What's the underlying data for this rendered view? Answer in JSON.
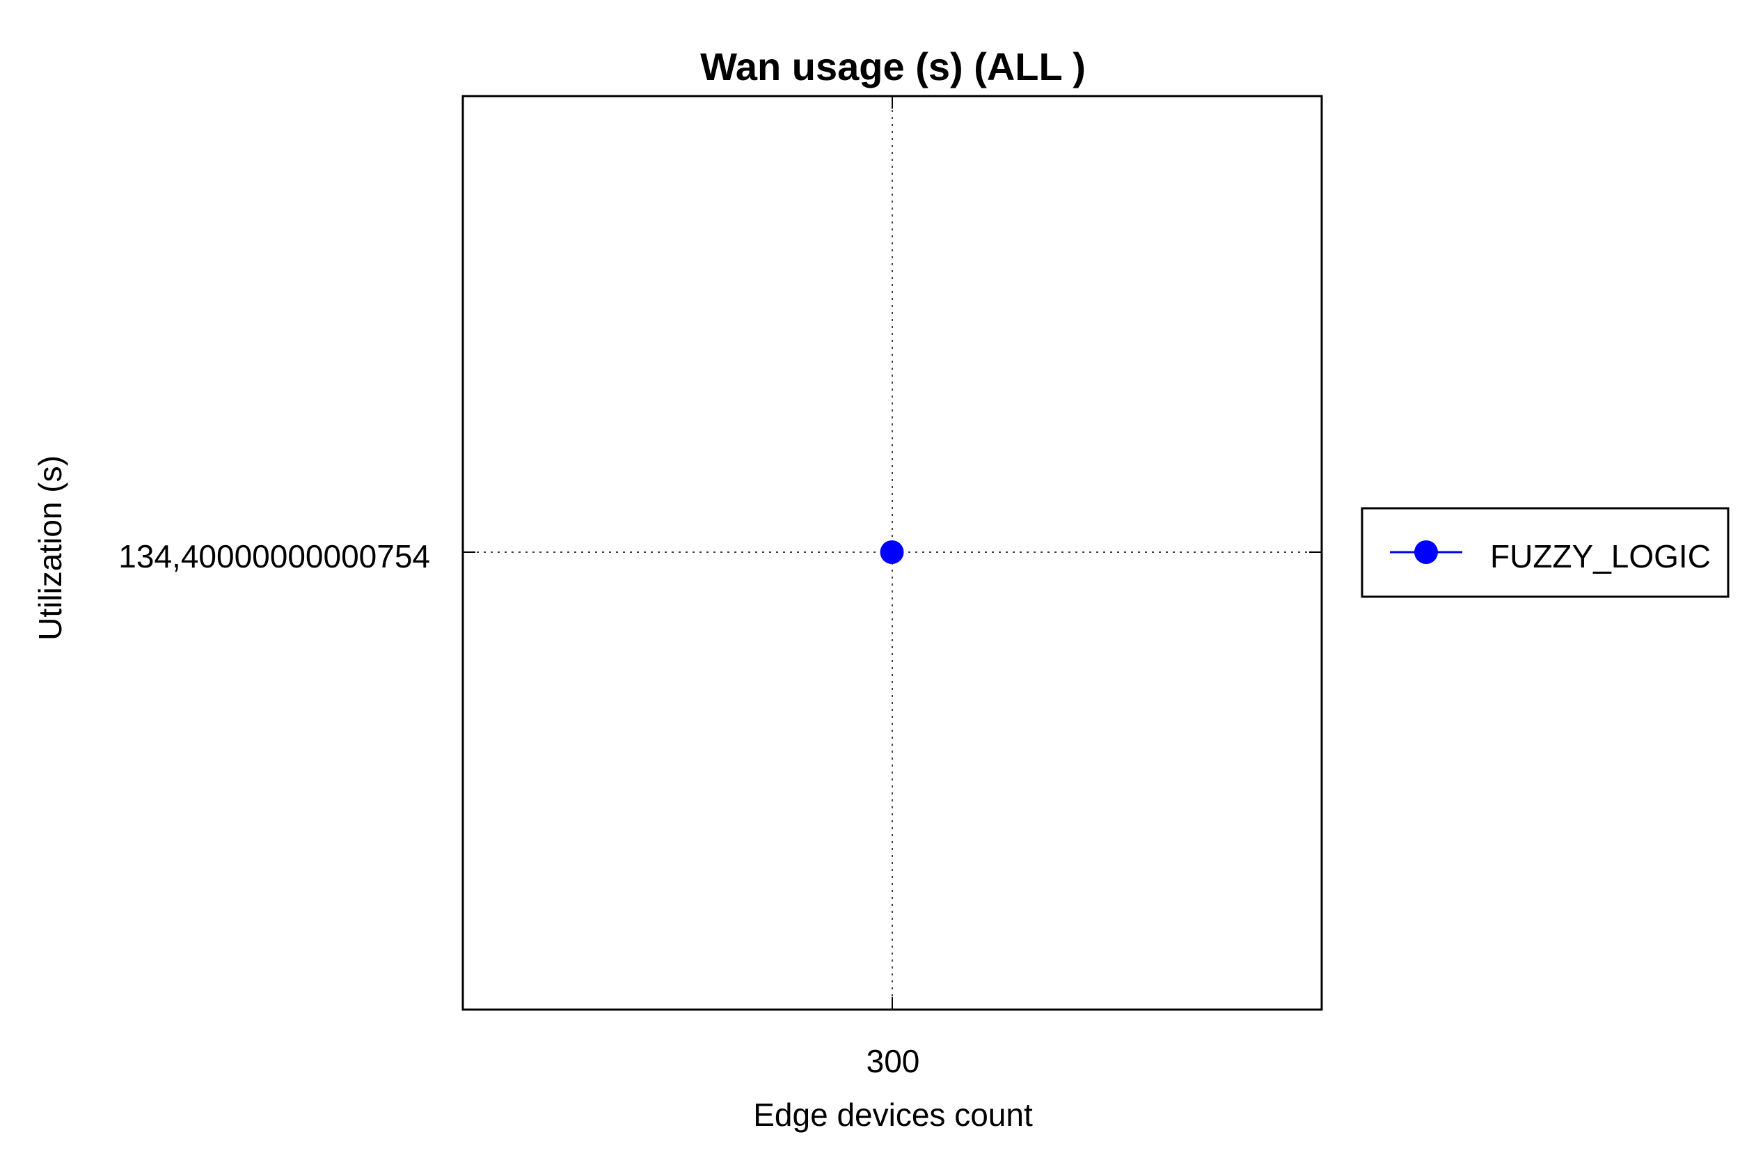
{
  "chart_data": {
    "type": "line",
    "title": "Wan usage (s) (ALL )",
    "xlabel": "Edge devices count",
    "ylabel": "Utilization (s)",
    "x_ticks": [
      "300"
    ],
    "y_ticks": [
      "134,40000000000754"
    ],
    "series": [
      {
        "name": "FUZZY_LOGIC",
        "color": "#0000ff",
        "marker": "circle",
        "x": [
          300
        ],
        "y": [
          134.40000000000754
        ]
      }
    ],
    "grid": true,
    "legend_position": "right"
  }
}
